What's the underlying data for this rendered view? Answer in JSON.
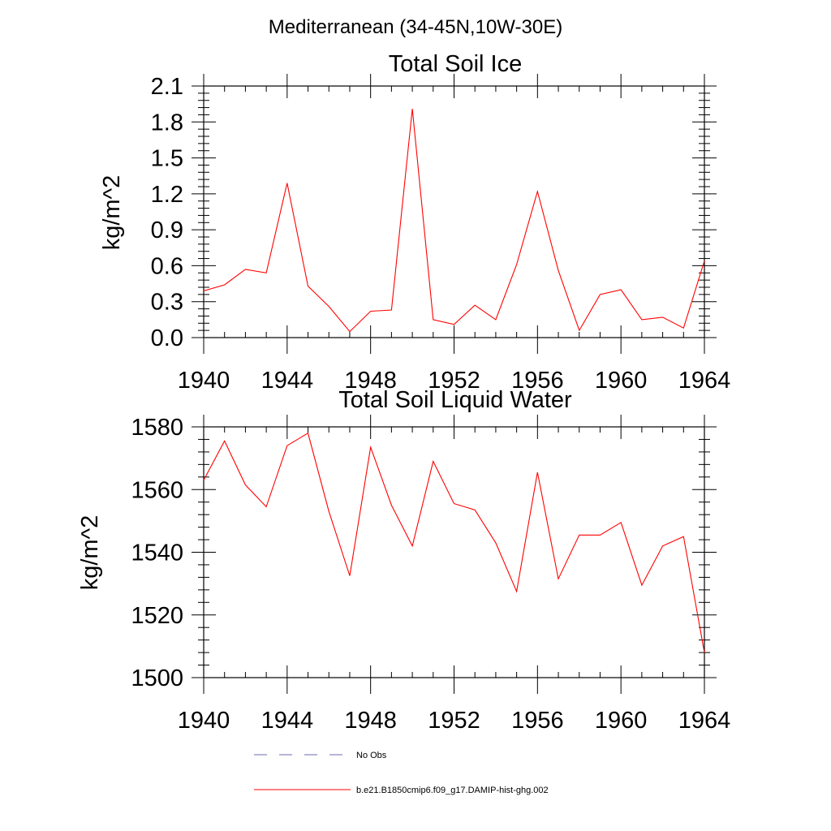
{
  "supertitle": "Mediterranean (34-45N,10W-30E)",
  "chart_data": [
    {
      "type": "line",
      "title": "Total Soil Ice",
      "xlabel": "",
      "ylabel": "kg/m^2",
      "xlim": [
        1940,
        1964
      ],
      "ylim": [
        0,
        2.1
      ],
      "x_ticks": [
        "1940",
        "1944",
        "1948",
        "1952",
        "1956",
        "1960",
        "1964"
      ],
      "y_ticks": [
        "0.0",
        "0.3",
        "0.6",
        "0.9",
        "1.2",
        "1.5",
        "1.8",
        "2.1"
      ],
      "x": [
        1940,
        1941,
        1942,
        1943,
        1944,
        1945,
        1946,
        1947,
        1948,
        1949,
        1950,
        1951,
        1952,
        1953,
        1954,
        1955,
        1956,
        1957,
        1958,
        1959,
        1960,
        1961,
        1962,
        1963,
        1964
      ],
      "series": [
        {
          "name": "b.e21.B1850cmip6.f09_g17.DAMIP-hist-ghg.002",
          "color": "#ff0000",
          "values": [
            0.39,
            0.44,
            0.57,
            0.54,
            1.29,
            0.43,
            0.26,
            0.05,
            0.22,
            0.23,
            1.91,
            0.15,
            0.11,
            0.27,
            0.15,
            0.61,
            1.22,
            0.56,
            0.06,
            0.36,
            0.4,
            0.15,
            0.17,
            0.08,
            0.64
          ]
        }
      ],
      "grid": false
    },
    {
      "type": "line",
      "title": "Total Soil Liquid Water",
      "xlabel": "",
      "ylabel": "kg/m^2",
      "xlim": [
        1940,
        1964
      ],
      "ylim": [
        1500,
        1580
      ],
      "x_ticks": [
        "1940",
        "1944",
        "1948",
        "1952",
        "1956",
        "1960",
        "1964"
      ],
      "y_ticks": [
        "1500",
        "1520",
        "1540",
        "1560",
        "1580"
      ],
      "x": [
        1940,
        1941,
        1942,
        1943,
        1944,
        1945,
        1946,
        1947,
        1948,
        1949,
        1950,
        1951,
        1952,
        1953,
        1954,
        1955,
        1956,
        1957,
        1958,
        1959,
        1960,
        1961,
        1962,
        1963,
        1964
      ],
      "series": [
        {
          "name": "b.e21.B1850cmip6.f09_g17.DAMIP-hist-ghg.002",
          "color": "#ff0000",
          "values": [
            1563,
            1575.5,
            1561.5,
            1554.5,
            1574,
            1578,
            1553,
            1532.5,
            1573.5,
            1555,
            1542,
            1569,
            1555.5,
            1553.5,
            1543,
            1527.5,
            1565.5,
            1531.5,
            1545.5,
            1545.5,
            1549.5,
            1529.5,
            1542,
            1545,
            1508
          ]
        }
      ],
      "grid": false
    }
  ],
  "legend": {
    "items": [
      {
        "label": "No Obs",
        "color": "#6b6bb0",
        "style": "dashed"
      },
      {
        "label": "b.e21.B1850cmip6.f09_g17.DAMIP-hist-ghg.002",
        "color": "#ff0000",
        "style": "solid"
      }
    ]
  }
}
